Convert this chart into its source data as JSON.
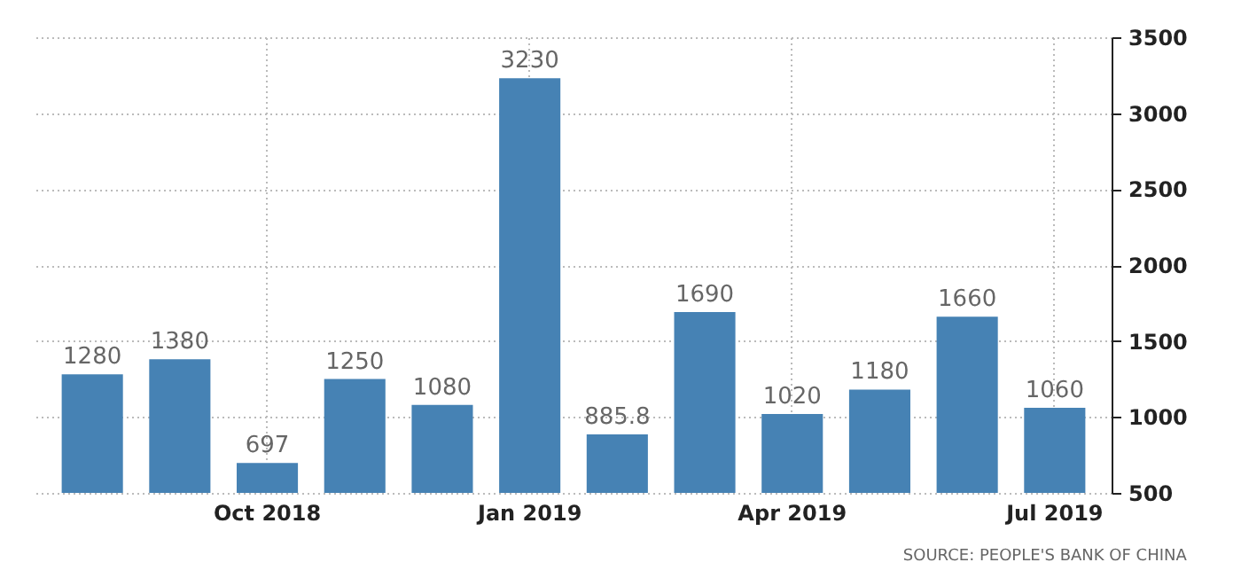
{
  "chart_data": {
    "type": "bar",
    "categories": [
      null,
      null,
      "Oct 2018",
      null,
      null,
      "Jan 2019",
      null,
      null,
      "Apr 2019",
      null,
      null,
      "Jul 2019"
    ],
    "values": [
      1280,
      1380,
      697,
      1250,
      1080,
      3230,
      885.8,
      1690,
      1020,
      1180,
      1660,
      1060
    ],
    "color": "#4682b4",
    "ylim": [
      500,
      3500
    ],
    "yticks": [
      500,
      1000,
      1500,
      2000,
      2500,
      3000,
      3500
    ],
    "grid": true,
    "data_labels": true,
    "annotations": [
      "SOURCE: PEOPLE'S BANK OF CHINA"
    ]
  }
}
